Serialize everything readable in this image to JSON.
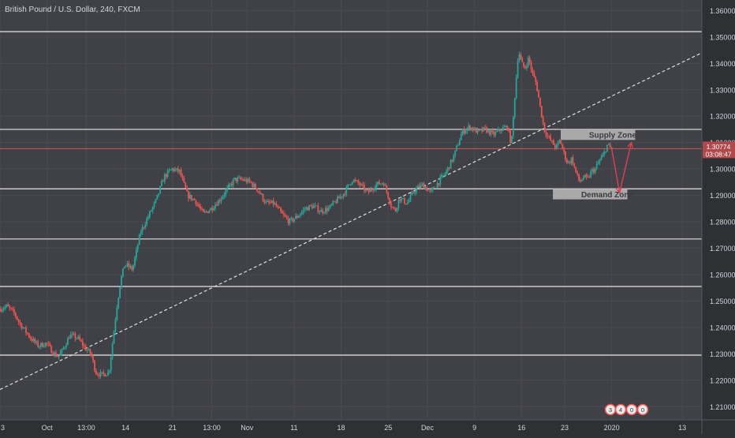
{
  "title": "British Pound / U.S. Dollar, 240, FXCM",
  "colors": {
    "background": "#2f3034",
    "plot_background": "#404146",
    "grid": "#4a4b50",
    "up_candle": "#26a69a",
    "down_candle": "#ef5350",
    "hline": "#e6e6e6",
    "trendline": "#e0e0e0",
    "price_line": "#c95a5a",
    "price_label_bg": "#b0484c",
    "text": "#d1d4dc",
    "zone_box": "#b4b4b4",
    "arrow": "#e04050"
  },
  "chart_data": {
    "type": "candlestick",
    "symbol": "British Pound / U.S. Dollar",
    "timeframe": "240",
    "source": "FXCM",
    "ylim": [
      1.205,
      1.364
    ],
    "y_ticks": [
      "1.36000",
      "1.35000",
      "1.34000",
      "1.33000",
      "1.32000",
      "1.31000",
      "1.30000",
      "1.29000",
      "1.28000",
      "1.27000",
      "1.26000",
      "1.25000",
      "1.24000",
      "1.23000",
      "1.22000",
      "1.21000"
    ],
    "x_ticks": [
      "3",
      "Oct",
      "13:00",
      "14",
      "21",
      "13:00",
      "Nov",
      "11",
      "18",
      "25",
      "Dec",
      "9",
      "16",
      "23",
      "2020",
      "13"
    ],
    "x_tick_positions": [
      0.0,
      6.0,
      11.0,
      16.0,
      22.0,
      27.0,
      31.5,
      37.5,
      43.5,
      49.5,
      54.5,
      60.5,
      66.5,
      72.0,
      78.0,
      87.0
    ],
    "x_range": [
      0,
      89.5
    ],
    "price_path": [
      [
        0,
        1.247
      ],
      [
        1,
        1.248
      ],
      [
        2,
        1.245
      ],
      [
        2.5,
        1.242
      ],
      [
        3,
        1.24
      ],
      [
        3.5,
        1.238
      ],
      [
        4,
        1.236
      ],
      [
        5,
        1.233
      ],
      [
        6,
        1.234
      ],
      [
        7,
        1.23
      ],
      [
        7.5,
        1.229
      ],
      [
        8,
        1.231
      ],
      [
        9,
        1.237
      ],
      [
        10,
        1.236
      ],
      [
        11,
        1.232
      ],
      [
        11.7,
        1.23
      ],
      [
        12.3,
        1.223
      ],
      [
        13,
        1.222
      ],
      [
        14,
        1.223
      ],
      [
        15,
        1.248
      ],
      [
        15.5,
        1.258
      ],
      [
        16,
        1.264
      ],
      [
        17,
        1.262
      ],
      [
        18,
        1.276
      ],
      [
        19,
        1.282
      ],
      [
        20,
        1.288
      ],
      [
        21,
        1.297
      ],
      [
        22,
        1.3
      ],
      [
        23,
        1.299
      ],
      [
        24,
        1.29
      ],
      [
        25,
        1.288
      ],
      [
        26,
        1.283
      ],
      [
        27,
        1.285
      ],
      [
        28,
        1.288
      ],
      [
        29,
        1.292
      ],
      [
        30,
        1.296
      ],
      [
        31,
        1.296
      ],
      [
        32,
        1.295
      ],
      [
        33,
        1.292
      ],
      [
        34,
        1.287
      ],
      [
        35,
        1.287
      ],
      [
        36,
        1.283
      ],
      [
        37,
        1.28
      ],
      [
        38,
        1.282
      ],
      [
        39,
        1.285
      ],
      [
        40,
        1.286
      ],
      [
        41,
        1.284
      ],
      [
        42,
        1.285
      ],
      [
        43,
        1.288
      ],
      [
        44,
        1.291
      ],
      [
        45,
        1.296
      ],
      [
        46,
        1.294
      ],
      [
        47,
        1.291
      ],
      [
        48,
        1.294
      ],
      [
        49,
        1.295
      ],
      [
        50,
        1.286
      ],
      [
        50.5,
        1.284
      ],
      [
        51,
        1.289
      ],
      [
        52,
        1.287
      ],
      [
        53,
        1.292
      ],
      [
        54,
        1.294
      ],
      [
        55,
        1.291
      ],
      [
        56,
        1.295
      ],
      [
        57,
        1.299
      ],
      [
        58,
        1.305
      ],
      [
        59,
        1.314
      ],
      [
        60,
        1.316
      ],
      [
        61,
        1.314
      ],
      [
        62,
        1.315
      ],
      [
        63,
        1.313
      ],
      [
        64,
        1.315
      ],
      [
        64.8,
        1.316
      ],
      [
        65.3,
        1.309
      ],
      [
        65.8,
        1.33
      ],
      [
        66.2,
        1.345
      ],
      [
        66.6,
        1.34
      ],
      [
        67,
        1.338
      ],
      [
        67.5,
        1.342
      ],
      [
        68,
        1.336
      ],
      [
        68.5,
        1.332
      ],
      [
        69,
        1.323
      ],
      [
        69.5,
        1.315
      ],
      [
        70,
        1.312
      ],
      [
        70.5,
        1.31
      ],
      [
        71,
        1.308
      ],
      [
        71.5,
        1.311
      ],
      [
        72,
        1.306
      ],
      [
        72.5,
        1.302
      ],
      [
        73,
        1.304
      ],
      [
        73.5,
        1.299
      ],
      [
        74,
        1.295
      ],
      [
        74.5,
        1.297
      ],
      [
        75,
        1.296
      ],
      [
        75.5,
        1.299
      ],
      [
        76,
        1.3
      ],
      [
        76.5,
        1.303
      ],
      [
        77,
        1.305
      ],
      [
        77.5,
        1.309
      ],
      [
        78,
        1.3077
      ]
    ],
    "horizontal_levels": [
      1.352,
      1.315,
      1.2925,
      1.2735,
      1.2555,
      1.2295
    ],
    "trendline": {
      "start": [
        0,
        1.2165
      ],
      "end": [
        89.5,
        1.344
      ]
    },
    "current_price": {
      "value": 1.3077,
      "label": "1.30774",
      "countdown": "03:08:47"
    },
    "zones": [
      {
        "name": "Supply Zone",
        "x_start": 71.5,
        "x_end": 81.0,
        "y_top": 1.315,
        "y_bottom": 1.311
      },
      {
        "name": "Demand Zone",
        "x_start": 70.5,
        "x_end": 80.0,
        "y_top": 1.2925,
        "y_bottom": 1.2885
      }
    ],
    "projection_path": [
      [
        78.0,
        1.3077
      ],
      [
        79.0,
        1.291
      ],
      [
        80.5,
        1.31
      ]
    ],
    "event_badges": [
      "3",
      "4",
      "0",
      "0"
    ]
  }
}
